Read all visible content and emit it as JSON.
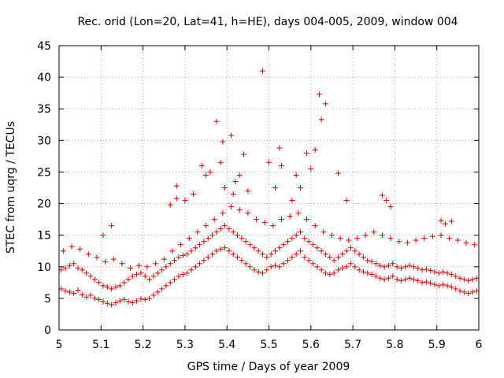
{
  "chart_data": {
    "type": "scatter",
    "title": "Rec. orid (Lon=20, Lat=41, h=HE), days 004-005, 2009, window 004",
    "xlabel": "GPS time / Days of year 2009",
    "ylabel": "STEC from uqrg / TECUs",
    "xlim": [
      5,
      6
    ],
    "ylim": [
      0,
      45
    ],
    "xticks": [
      "5",
      "5.1",
      "5.2",
      "5.3",
      "5.4",
      "5.5",
      "5.6",
      "5.7",
      "5.8",
      "5.9",
      "6"
    ],
    "yticks": [
      "0",
      "5",
      "10",
      "15",
      "20",
      "25",
      "30",
      "35",
      "40",
      "45"
    ],
    "grid": true,
    "marker": "+",
    "color": "#cc0000",
    "series": [
      {
        "x": [
          5.005,
          5.015,
          5.025,
          5.035,
          5.045,
          5.055,
          5.065,
          5.075,
          5.085,
          5.095,
          5.105,
          5.115,
          5.125,
          5.135,
          5.145,
          5.155,
          5.165,
          5.175,
          5.185,
          5.195,
          5.205,
          5.215,
          5.225,
          5.235,
          5.245,
          5.255,
          5.265,
          5.275,
          5.285,
          5.295,
          5.305,
          5.315,
          5.325,
          5.335,
          5.345,
          5.355,
          5.365,
          5.375,
          5.385,
          5.395,
          5.405,
          5.415,
          5.425,
          5.435,
          5.445,
          5.455,
          5.465,
          5.475,
          5.485,
          5.495,
          5.505,
          5.515,
          5.525,
          5.535,
          5.545,
          5.555,
          5.565,
          5.575,
          5.585,
          5.595,
          5.605,
          5.615,
          5.625,
          5.635,
          5.645,
          5.655,
          5.665,
          5.675,
          5.685,
          5.695,
          5.705,
          5.715,
          5.725,
          5.735,
          5.745,
          5.755,
          5.765,
          5.775,
          5.785,
          5.795,
          5.805,
          5.815,
          5.825,
          5.835,
          5.845,
          5.855,
          5.865,
          5.875,
          5.885,
          5.895,
          5.905,
          5.915,
          5.925,
          5.935,
          5.945,
          5.955,
          5.965,
          5.975,
          5.985,
          5.995,
          5.005,
          5.015,
          5.025,
          5.035,
          5.045,
          5.055,
          5.065,
          5.075,
          5.085,
          5.095,
          5.105,
          5.115,
          5.125,
          5.135,
          5.145,
          5.155,
          5.165,
          5.175,
          5.185,
          5.195,
          5.205,
          5.215,
          5.225,
          5.235,
          5.245,
          5.255,
          5.265,
          5.275,
          5.285,
          5.295,
          5.305,
          5.315,
          5.325,
          5.335,
          5.345,
          5.355,
          5.365,
          5.375,
          5.385,
          5.395,
          5.405,
          5.415,
          5.425,
          5.435,
          5.445,
          5.455,
          5.465,
          5.475,
          5.485,
          5.495,
          5.505,
          5.515,
          5.525,
          5.535,
          5.545,
          5.555,
          5.565,
          5.575,
          5.585,
          5.595,
          5.605,
          5.615,
          5.625,
          5.635,
          5.645,
          5.655,
          5.665,
          5.675,
          5.685,
          5.695,
          5.705,
          5.715,
          5.725,
          5.735,
          5.745,
          5.755,
          5.765,
          5.775,
          5.785,
          5.795,
          5.805,
          5.815,
          5.825,
          5.835,
          5.845,
          5.855,
          5.865,
          5.875,
          5.885,
          5.895,
          5.905,
          5.915,
          5.925,
          5.935,
          5.945,
          5.955,
          5.965,
          5.975,
          5.985,
          5.995,
          5.01,
          5.03,
          5.05,
          5.07,
          5.09,
          5.11,
          5.13,
          5.15,
          5.17,
          5.19,
          5.21,
          5.23,
          5.25,
          5.27,
          5.29,
          5.31,
          5.33,
          5.35,
          5.37,
          5.39,
          5.41,
          5.43,
          5.45,
          5.47,
          5.49,
          5.51,
          5.53,
          5.55,
          5.57,
          5.59,
          5.61,
          5.63,
          5.65,
          5.67,
          5.69,
          5.71,
          5.73,
          5.75,
          5.77,
          5.79,
          5.81,
          5.83,
          5.85,
          5.87,
          5.89,
          5.91,
          5.93,
          5.95,
          5.97,
          5.99,
          5.28,
          5.3,
          5.32,
          5.34,
          5.35,
          5.36,
          5.375,
          5.385,
          5.39,
          5.395,
          5.41,
          5.415,
          5.42,
          5.43,
          5.44,
          5.45,
          5.485,
          5.5,
          5.515,
          5.525,
          5.53,
          5.555,
          5.565,
          5.575,
          5.59,
          5.6,
          5.61,
          5.62,
          5.625,
          5.635,
          5.665,
          5.685,
          5.77,
          5.78,
          5.79,
          5.91,
          5.92,
          5.935,
          5.125,
          5.105,
          5.28,
          5.265
        ],
        "y": [
          6.5,
          6.2,
          6.0,
          5.8,
          6.3,
          5.6,
          5.2,
          5.5,
          5.0,
          4.8,
          4.5,
          4.2,
          4.0,
          4.3,
          4.6,
          4.8,
          4.5,
          4.3,
          4.6,
          4.9,
          4.8,
          5.0,
          5.5,
          6.0,
          6.5,
          7.0,
          7.5,
          8.0,
          8.5,
          8.8,
          9.0,
          9.5,
          10.0,
          10.5,
          11.0,
          11.5,
          12.0,
          12.5,
          12.8,
          13.0,
          12.5,
          12.0,
          11.5,
          11.0,
          10.5,
          10.0,
          9.5,
          9.2,
          9.0,
          9.5,
          10.0,
          10.2,
          10.0,
          10.5,
          11.0,
          11.5,
          12.0,
          12.5,
          11.5,
          11.0,
          10.5,
          10.0,
          9.5,
          9.0,
          8.8,
          9.0,
          9.5,
          9.8,
          10.0,
          10.5,
          10.0,
          9.5,
          9.2,
          9.0,
          8.8,
          8.5,
          8.2,
          8.0,
          8.2,
          8.5,
          8.0,
          7.8,
          8.0,
          8.2,
          8.0,
          7.8,
          7.5,
          7.6,
          7.4,
          7.2,
          7.0,
          7.2,
          7.0,
          6.8,
          6.5,
          6.2,
          6.0,
          5.8,
          6.0,
          6.2,
          9.5,
          9.8,
          10.2,
          10.5,
          9.8,
          9.5,
          9.0,
          8.5,
          8.0,
          7.5,
          7.0,
          6.8,
          6.5,
          6.8,
          7.0,
          7.5,
          8.0,
          8.5,
          8.8,
          9.0,
          8.5,
          8.0,
          8.5,
          9.0,
          9.5,
          10.0,
          10.5,
          11.0,
          11.5,
          11.8,
          12.0,
          12.5,
          13.0,
          13.5,
          14.0,
          14.5,
          15.0,
          15.5,
          16.0,
          16.5,
          16.0,
          15.5,
          15.0,
          14.5,
          14.0,
          13.5,
          13.0,
          12.5,
          12.0,
          11.5,
          12.0,
          12.5,
          13.0,
          13.5,
          14.0,
          14.5,
          15.0,
          15.5,
          14.5,
          14.0,
          13.5,
          13.0,
          12.5,
          12.0,
          11.5,
          11.0,
          11.5,
          12.0,
          12.5,
          13.0,
          12.5,
          12.0,
          11.5,
          11.0,
          10.8,
          10.5,
          10.2,
          10.0,
          10.2,
          10.5,
          10.0,
          9.8,
          10.0,
          10.2,
          10.0,
          9.8,
          9.5,
          9.6,
          9.4,
          9.2,
          9.0,
          9.2,
          9.0,
          8.8,
          8.5,
          8.2,
          8.0,
          7.8,
          8.0,
          8.2,
          12.5,
          13.2,
          12.8,
          12.0,
          11.5,
          10.8,
          11.2,
          10.5,
          9.8,
          10.2,
          10.0,
          10.5,
          11.2,
          12.5,
          13.5,
          14.5,
          15.5,
          16.5,
          17.5,
          18.5,
          19.5,
          19.0,
          18.5,
          17.5,
          17.0,
          16.5,
          17.5,
          18.0,
          18.5,
          17.5,
          16.5,
          15.5,
          15.0,
          14.5,
          14.2,
          14.5,
          15.0,
          15.5,
          15.0,
          14.5,
          14.0,
          13.8,
          14.2,
          14.5,
          14.8,
          15.0,
          14.5,
          14.2,
          13.8,
          13.5,
          22.8,
          20.5,
          21.5,
          26.0,
          24.5,
          25.0,
          33.0,
          26.5,
          29.8,
          22.5,
          30.8,
          21.5,
          23.5,
          24.5,
          27.8,
          22.0,
          41.0,
          26.5,
          22.5,
          28.8,
          26.0,
          20.5,
          24.5,
          22.5,
          28.0,
          25.5,
          28.5,
          37.3,
          33.3,
          35.8,
          24.8,
          20.5,
          21.3,
          20.5,
          19.5,
          17.3,
          16.8,
          17.2,
          16.5,
          15.0,
          20.8,
          19.8
        ]
      }
    ]
  }
}
